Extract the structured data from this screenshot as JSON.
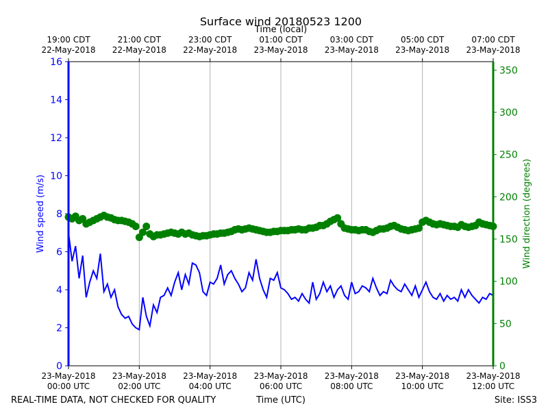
{
  "chart_data": {
    "type": "line",
    "title": "Surface wind 20180523 1200",
    "top_axis_title": "Time (local)",
    "top_ticks": [
      [
        "19:00 CDT",
        "22-May-2018"
      ],
      [
        "21:00 CDT",
        "22-May-2018"
      ],
      [
        "23:00 CDT",
        "22-May-2018"
      ],
      [
        "01:00 CDT",
        "23-May-2018"
      ],
      [
        "03:00 CDT",
        "23-May-2018"
      ],
      [
        "05:00 CDT",
        "23-May-2018"
      ],
      [
        "07:00 CDT",
        "23-May-2018"
      ]
    ],
    "bottom_ticks": [
      [
        "23-May-2018",
        "00:00 UTC"
      ],
      [
        "23-May-2018",
        "02:00 UTC"
      ],
      [
        "23-May-2018",
        "04:00 UTC"
      ],
      [
        "23-May-2018",
        "06:00 UTC"
      ],
      [
        "23-May-2018",
        "08:00 UTC"
      ],
      [
        "23-May-2018",
        "10:00 UTC"
      ],
      [
        "23-May-2018",
        "12:00 UTC"
      ]
    ],
    "xlabel": "Time (UTC)",
    "xlim_hours": [
      0,
      12
    ],
    "left_axis": {
      "label": "Wind speed (m/s)",
      "ylim": [
        0,
        16
      ],
      "ticks": [
        0,
        2,
        4,
        6,
        8,
        10,
        12,
        14,
        16
      ],
      "color": "#0000ff"
    },
    "right_axis": {
      "label": "Wind direction (degrees)",
      "ylim": [
        0,
        360
      ],
      "ticks": [
        0,
        50,
        100,
        150,
        200,
        250,
        300,
        350
      ],
      "color": "#008000"
    },
    "grid": "vertical lines at bottom ticks",
    "series": [
      {
        "name": "Wind speed",
        "axis": "left",
        "style": "line",
        "color": "#0000ff",
        "x_hours": [
          0.0,
          0.1,
          0.2,
          0.3,
          0.4,
          0.5,
          0.6,
          0.7,
          0.8,
          0.9,
          1.0,
          1.1,
          1.2,
          1.3,
          1.4,
          1.5,
          1.6,
          1.7,
          1.8,
          1.9,
          2.0,
          2.1,
          2.2,
          2.3,
          2.4,
          2.5,
          2.6,
          2.7,
          2.8,
          2.9,
          3.0,
          3.1,
          3.2,
          3.3,
          3.4,
          3.5,
          3.6,
          3.7,
          3.8,
          3.9,
          4.0,
          4.1,
          4.2,
          4.3,
          4.4,
          4.5,
          4.6,
          4.7,
          4.8,
          4.9,
          5.0,
          5.1,
          5.2,
          5.3,
          5.4,
          5.5,
          5.6,
          5.7,
          5.8,
          5.9,
          6.0,
          6.1,
          6.2,
          6.3,
          6.4,
          6.5,
          6.6,
          6.7,
          6.8,
          6.9,
          7.0,
          7.1,
          7.2,
          7.3,
          7.4,
          7.5,
          7.6,
          7.7,
          7.8,
          7.9,
          8.0,
          8.1,
          8.2,
          8.3,
          8.4,
          8.5,
          8.6,
          8.7,
          8.8,
          8.9,
          9.0,
          9.1,
          9.2,
          9.3,
          9.4,
          9.5,
          9.6,
          9.7,
          9.8,
          9.9,
          10.0,
          10.1,
          10.2,
          10.3,
          10.4,
          10.5,
          10.6,
          10.7,
          10.8,
          10.9,
          11.0,
          11.1,
          11.2,
          11.3,
          11.4,
          11.5,
          11.6,
          11.7,
          11.8,
          11.9,
          12.0
        ],
        "values": [
          7.0,
          5.5,
          6.3,
          4.6,
          5.8,
          3.6,
          4.4,
          5.0,
          4.6,
          5.9,
          3.9,
          4.3,
          3.6,
          4.0,
          3.1,
          2.7,
          2.5,
          2.6,
          2.2,
          2.0,
          1.9,
          3.6,
          2.6,
          2.1,
          3.2,
          2.8,
          3.6,
          3.7,
          4.1,
          3.7,
          4.4,
          4.9,
          4.0,
          4.8,
          4.3,
          5.4,
          5.3,
          4.9,
          3.9,
          3.7,
          4.4,
          4.3,
          4.6,
          5.3,
          4.3,
          4.8,
          5.0,
          4.6,
          4.3,
          3.9,
          4.1,
          4.9,
          4.5,
          5.6,
          4.6,
          4.0,
          3.6,
          4.6,
          4.5,
          4.9,
          4.1,
          4.0,
          3.8,
          3.5,
          3.6,
          3.4,
          3.8,
          3.5,
          3.3,
          4.4,
          3.5,
          3.8,
          4.4,
          3.9,
          4.2,
          3.6,
          4.0,
          4.2,
          3.7,
          3.5,
          4.4,
          3.8,
          3.9,
          4.2,
          4.1,
          3.9,
          4.6,
          4.1,
          3.7,
          3.9,
          3.8,
          4.5,
          4.2,
          4.0,
          3.9,
          4.3,
          4.0,
          3.7,
          4.2,
          3.6,
          4.0,
          4.4,
          3.9,
          3.6,
          3.5,
          3.8,
          3.4,
          3.7,
          3.5,
          3.6,
          3.4,
          4.0,
          3.6,
          4.0,
          3.7,
          3.5,
          3.3,
          3.6,
          3.5,
          3.8,
          3.7
        ]
      },
      {
        "name": "Wind direction",
        "axis": "right",
        "style": "markers",
        "color": "#008000",
        "x_hours": [
          0.0,
          0.1,
          0.2,
          0.3,
          0.4,
          0.5,
          0.6,
          0.7,
          0.8,
          0.9,
          1.0,
          1.1,
          1.2,
          1.3,
          1.4,
          1.5,
          1.6,
          1.7,
          1.8,
          1.9,
          2.0,
          2.1,
          2.2,
          2.3,
          2.4,
          2.5,
          2.6,
          2.7,
          2.8,
          2.9,
          3.0,
          3.1,
          3.2,
          3.3,
          3.4,
          3.5,
          3.6,
          3.7,
          3.8,
          3.9,
          4.0,
          4.1,
          4.2,
          4.3,
          4.4,
          4.5,
          4.6,
          4.7,
          4.8,
          4.9,
          5.0,
          5.1,
          5.2,
          5.3,
          5.4,
          5.5,
          5.6,
          5.7,
          5.8,
          5.9,
          6.0,
          6.1,
          6.2,
          6.3,
          6.4,
          6.5,
          6.6,
          6.7,
          6.8,
          6.9,
          7.0,
          7.1,
          7.2,
          7.3,
          7.4,
          7.5,
          7.6,
          7.7,
          7.8,
          7.9,
          8.0,
          8.1,
          8.2,
          8.3,
          8.4,
          8.5,
          8.6,
          8.7,
          8.8,
          8.9,
          9.0,
          9.1,
          9.2,
          9.3,
          9.4,
          9.5,
          9.6,
          9.7,
          9.8,
          9.9,
          10.0,
          10.1,
          10.2,
          10.3,
          10.4,
          10.5,
          10.6,
          10.7,
          10.8,
          10.9,
          11.0,
          11.1,
          11.2,
          11.3,
          11.4,
          11.5,
          11.6,
          11.7,
          11.8,
          11.9,
          12.0
        ],
        "values": [
          176,
          174,
          177,
          172,
          174,
          168,
          170,
          172,
          174,
          176,
          178,
          176,
          175,
          173,
          172,
          172,
          171,
          170,
          168,
          165,
          152,
          158,
          165,
          156,
          153,
          155,
          155,
          156,
          157,
          158,
          157,
          156,
          158,
          156,
          157,
          155,
          154,
          153,
          154,
          154,
          155,
          156,
          156,
          157,
          157,
          158,
          159,
          161,
          162,
          161,
          162,
          163,
          162,
          161,
          160,
          159,
          158,
          158,
          159,
          159,
          160,
          160,
          160,
          161,
          161,
          162,
          161,
          161,
          163,
          163,
          164,
          166,
          166,
          168,
          171,
          173,
          175,
          168,
          163,
          162,
          161,
          161,
          160,
          161,
          161,
          159,
          158,
          160,
          162,
          162,
          163,
          165,
          166,
          164,
          162,
          161,
          160,
          161,
          162,
          163,
          170,
          172,
          170,
          168,
          167,
          168,
          167,
          166,
          165,
          165,
          164,
          167,
          165,
          164,
          165,
          166,
          170,
          168,
          167,
          166,
          165
        ]
      }
    ],
    "footer_left": "REAL-TIME DATA, NOT CHECKED FOR QUALITY",
    "footer_right": "Site: ISS3"
  }
}
